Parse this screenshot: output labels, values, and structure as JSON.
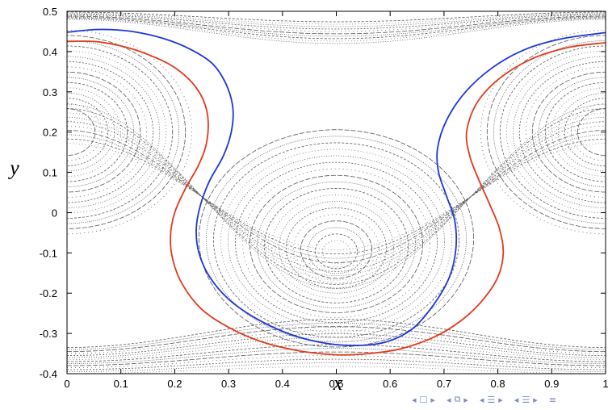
{
  "chart_data": {
    "type": "line",
    "title": "",
    "xlabel": "x",
    "ylabel": "y",
    "xlim": [
      0,
      1
    ],
    "ylim": [
      -0.4,
      0.5
    ],
    "grid": false,
    "x_ticks": [
      "0",
      "0.1",
      "0.2",
      "0.3",
      "0.4",
      "0.5",
      "0.6",
      "0.7",
      "0.8",
      "0.9",
      "1"
    ],
    "y_ticks": [
      "-0.4",
      "-0.3",
      "-0.2",
      "-0.1",
      "0",
      "0.1",
      "0.2",
      "0.3",
      "0.4",
      "0.5"
    ],
    "series": [
      {
        "color": "#1f35d8",
        "points": [
          [
            0,
            0.448
          ],
          [
            0.06,
            0.455
          ],
          [
            0.12,
            0.45
          ],
          [
            0.18,
            0.432
          ],
          [
            0.23,
            0.405
          ],
          [
            0.27,
            0.37
          ],
          [
            0.295,
            0.32
          ],
          [
            0.308,
            0.26
          ],
          [
            0.305,
            0.2
          ],
          [
            0.29,
            0.14
          ],
          [
            0.265,
            0.08
          ],
          [
            0.248,
            0.02
          ],
          [
            0.24,
            -0.04
          ],
          [
            0.245,
            -0.1
          ],
          [
            0.265,
            -0.16
          ],
          [
            0.3,
            -0.215
          ],
          [
            0.35,
            -0.262
          ],
          [
            0.41,
            -0.3
          ],
          [
            0.47,
            -0.322
          ],
          [
            0.53,
            -0.33
          ],
          [
            0.59,
            -0.322
          ],
          [
            0.64,
            -0.29
          ],
          [
            0.68,
            -0.23
          ],
          [
            0.71,
            -0.16
          ],
          [
            0.722,
            -0.09
          ],
          [
            0.72,
            -0.02
          ],
          [
            0.705,
            0.04
          ],
          [
            0.69,
            0.1
          ],
          [
            0.688,
            0.16
          ],
          [
            0.705,
            0.23
          ],
          [
            0.74,
            0.3
          ],
          [
            0.79,
            0.36
          ],
          [
            0.85,
            0.405
          ],
          [
            0.92,
            0.432
          ],
          [
            1.0,
            0.447
          ]
        ]
      },
      {
        "color": "#e03a1c",
        "points": [
          [
            0,
            0.425
          ],
          [
            0.05,
            0.425
          ],
          [
            0.1,
            0.414
          ],
          [
            0.15,
            0.393
          ],
          [
            0.2,
            0.36
          ],
          [
            0.24,
            0.31
          ],
          [
            0.26,
            0.25
          ],
          [
            0.26,
            0.18
          ],
          [
            0.245,
            0.12
          ],
          [
            0.22,
            0.06
          ],
          [
            0.2,
            0.0
          ],
          [
            0.192,
            -0.06
          ],
          [
            0.197,
            -0.12
          ],
          [
            0.215,
            -0.18
          ],
          [
            0.25,
            -0.24
          ],
          [
            0.3,
            -0.285
          ],
          [
            0.36,
            -0.32
          ],
          [
            0.43,
            -0.343
          ],
          [
            0.5,
            -0.353
          ],
          [
            0.56,
            -0.35
          ],
          [
            0.62,
            -0.338
          ],
          [
            0.68,
            -0.31
          ],
          [
            0.73,
            -0.27
          ],
          [
            0.77,
            -0.22
          ],
          [
            0.8,
            -0.16
          ],
          [
            0.81,
            -0.1
          ],
          [
            0.803,
            -0.04
          ],
          [
            0.785,
            0.02
          ],
          [
            0.765,
            0.08
          ],
          [
            0.748,
            0.14
          ],
          [
            0.742,
            0.2
          ],
          [
            0.76,
            0.27
          ],
          [
            0.8,
            0.33
          ],
          [
            0.86,
            0.38
          ],
          [
            0.93,
            0.41
          ],
          [
            1.0,
            0.422
          ]
        ]
      }
    ],
    "background_pattern": "dense grey dotted Poincare-section orbits: elliptic islands centered at (0.5,-0.1), (0,0.2), (1,0.2); hyperbolic X-point near (0.5,0.2)"
  },
  "nav": {
    "first": "◂",
    "frame": "☐",
    "next_frame": "▸",
    "prev_sub": "◂",
    "sub": "⧉",
    "next_sub": "▸",
    "prev_sec": "◂",
    "sec": "☰",
    "next_sec": "▸",
    "prev_subsec": "◂",
    "subsec": "☰",
    "next_subsec": "▸",
    "menu": "≡"
  }
}
